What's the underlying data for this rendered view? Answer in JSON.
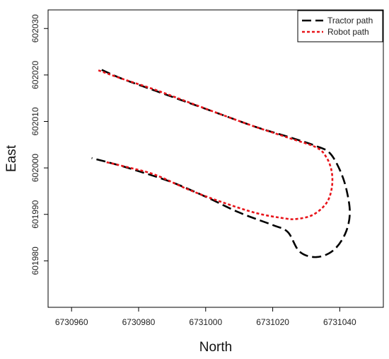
{
  "chart_data": {
    "type": "line",
    "title": "",
    "xlabel": "North",
    "ylabel": "East",
    "xlim": [
      6730953,
      6731053
    ],
    "ylim": [
      601970,
      602034
    ],
    "x_ticks": [
      6730960,
      6730980,
      6731000,
      6731020,
      6731040
    ],
    "x_tick_labels": [
      "6730960",
      "6730980",
      "6731000",
      "6731020",
      "6731040"
    ],
    "y_ticks": [
      601980,
      601990,
      602000,
      602010,
      602020,
      602030
    ],
    "y_tick_labels": [
      "601980",
      "601990",
      "602000",
      "602010",
      "602020",
      "602030"
    ],
    "grid": false,
    "legend_position": "top-right",
    "series": [
      {
        "name": "Tractor path",
        "color": "#000000",
        "dash": "long-dash",
        "points": [
          [
            6730969,
            602021.1
          ],
          [
            6730975,
            602019.2
          ],
          [
            6730985,
            602016.6
          ],
          [
            6730995,
            602014.0
          ],
          [
            6731005,
            602011.4
          ],
          [
            6731015,
            602008.8
          ],
          [
            6731025,
            602006.6
          ],
          [
            6731033,
            602004.7
          ],
          [
            6731037,
            602003.2
          ],
          [
            6731040,
            601999.6
          ],
          [
            6731042,
            601995.3
          ],
          [
            6731043,
            601990.2
          ],
          [
            6731041.6,
            601985.8
          ],
          [
            6731038,
            601982.2
          ],
          [
            6731033,
            601980.8
          ],
          [
            6731028,
            601982.0
          ],
          [
            6731024.5,
            601986.2
          ],
          [
            6731020,
            601987.7
          ],
          [
            6731010,
            601990.4
          ],
          [
            6731000,
            601993.8
          ],
          [
            6730990,
            601996.9
          ],
          [
            6730980,
            601999.3
          ],
          [
            6730972,
            602001.0
          ],
          [
            6730966,
            602002.1
          ]
        ]
      },
      {
        "name": "Robot path",
        "color": "#e8141a",
        "dash": "dotted",
        "points": [
          [
            6730968,
            602021.0
          ],
          [
            6730975,
            602019.2
          ],
          [
            6730985,
            602016.8
          ],
          [
            6730995,
            602014.1
          ],
          [
            6731005,
            602011.4
          ],
          [
            6731015,
            602008.8
          ],
          [
            6731025,
            602006.4
          ],
          [
            6731033,
            602004.4
          ],
          [
            6731036,
            602002.3
          ],
          [
            6731037.6,
            601999.2
          ],
          [
            6731037.6,
            601995.6
          ],
          [
            6731036,
            601992.4
          ],
          [
            6731032,
            601989.9
          ],
          [
            6731027,
            601989.0
          ],
          [
            6731023,
            601989.2
          ],
          [
            6731015,
            601990.3
          ],
          [
            6731005,
            601992.6
          ],
          [
            6730995,
            601995.3
          ],
          [
            6730985,
            601998.5
          ],
          [
            6730977,
            602000.1
          ],
          [
            6730970,
            602001.3
          ]
        ]
      }
    ]
  }
}
